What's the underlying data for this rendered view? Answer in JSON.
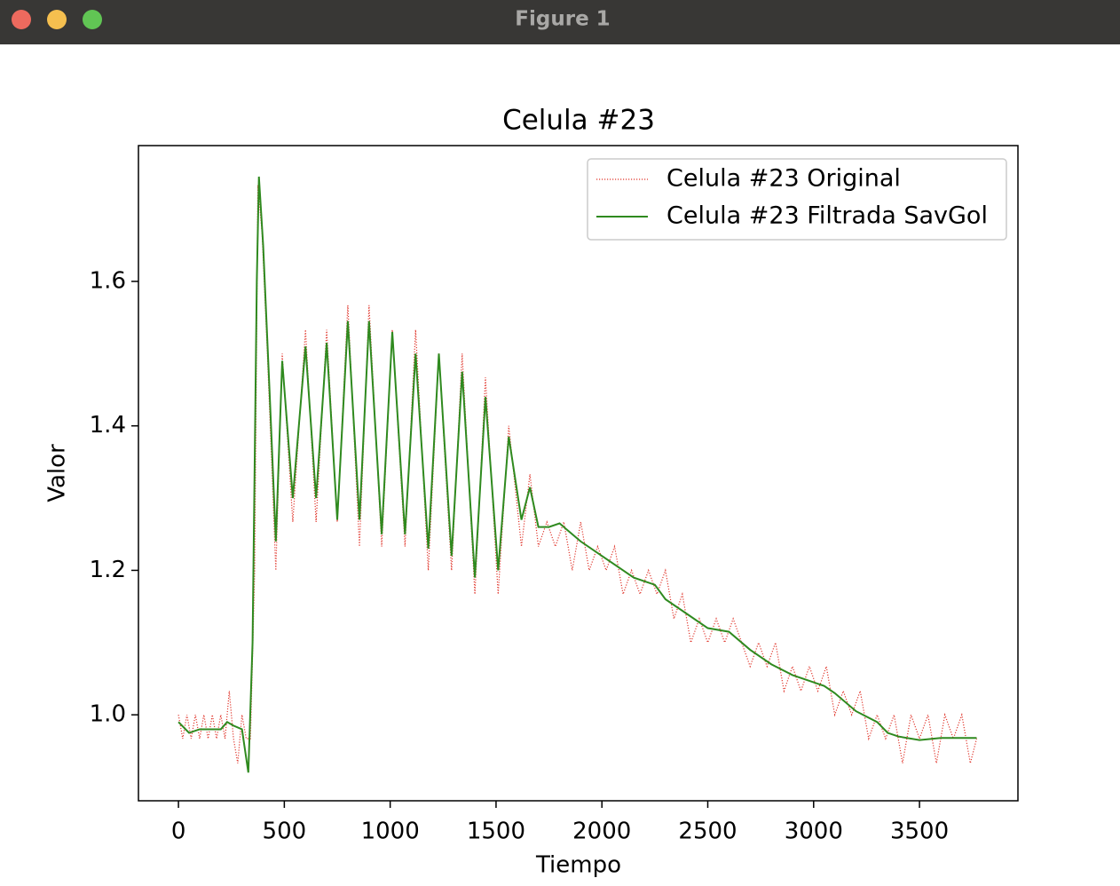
{
  "window": {
    "title": "Figure 1"
  },
  "chart_data": {
    "type": "line",
    "title": "Celula #23",
    "x_label": "Tiempo",
    "y_label": "Valor",
    "xlim": [
      -189,
      3965
    ],
    "ylim": [
      0.881,
      1.788
    ],
    "xticks": [
      0,
      500,
      1000,
      1500,
      2000,
      2500,
      3000,
      3500
    ],
    "yticks": [
      {
        "value": 1,
        "label": "1.0"
      },
      1.2,
      1.4,
      1.6
    ],
    "grid": false,
    "legend": "upper right",
    "series": [
      {
        "name": "Celula #23 Original",
        "color": "#e0352b",
        "linestyle": "dotted",
        "x": [
          0,
          20,
          40,
          60,
          80,
          100,
          120,
          140,
          160,
          180,
          200,
          220,
          240,
          260,
          280,
          300,
          320,
          340,
          360,
          375,
          385,
          395,
          420,
          460,
          490,
          540,
          600,
          650,
          700,
          750,
          800,
          855,
          900,
          960,
          1010,
          1070,
          1120,
          1180,
          1230,
          1290,
          1340,
          1400,
          1450,
          1510,
          1560,
          1620,
          1660,
          1700,
          1740,
          1780,
          1820,
          1860,
          1900,
          1940,
          1980,
          2020,
          2060,
          2100,
          2140,
          2180,
          2220,
          2260,
          2300,
          2340,
          2380,
          2420,
          2460,
          2500,
          2540,
          2580,
          2620,
          2660,
          2700,
          2740,
          2780,
          2820,
          2860,
          2900,
          2940,
          2980,
          3020,
          3060,
          3100,
          3140,
          3180,
          3220,
          3260,
          3300,
          3340,
          3380,
          3420,
          3460,
          3500,
          3540,
          3580,
          3620,
          3660,
          3700,
          3740,
          3770
        ],
        "values": [
          1.0,
          0.967,
          1.0,
          0.967,
          1.0,
          0.967,
          1.0,
          0.967,
          1.0,
          0.967,
          1.0,
          0.967,
          1.033,
          0.967,
          0.933,
          1.0,
          0.967,
          0.967,
          1.2,
          1.733,
          1.7,
          1.667,
          1.5,
          1.2,
          1.5,
          1.267,
          1.533,
          1.267,
          1.533,
          1.267,
          1.567,
          1.233,
          1.567,
          1.233,
          1.533,
          1.233,
          1.533,
          1.2,
          1.5,
          1.2,
          1.5,
          1.167,
          1.467,
          1.167,
          1.4,
          1.233,
          1.333,
          1.233,
          1.267,
          1.233,
          1.267,
          1.2,
          1.267,
          1.2,
          1.233,
          1.2,
          1.233,
          1.167,
          1.2,
          1.167,
          1.2,
          1.167,
          1.2,
          1.133,
          1.167,
          1.1,
          1.133,
          1.1,
          1.133,
          1.1,
          1.133,
          1.1,
          1.067,
          1.1,
          1.067,
          1.1,
          1.033,
          1.067,
          1.033,
          1.067,
          1.033,
          1.067,
          1.0,
          1.033,
          1.0,
          1.033,
          0.967,
          1.0,
          0.967,
          1.0,
          0.933,
          1.0,
          0.967,
          1.0,
          0.933,
          1.0,
          0.967,
          1.0,
          0.933,
          0.967
        ]
      },
      {
        "name": "Celula #23 Filtrada SavGol",
        "color": "#2f8a1f",
        "linestyle": "solid",
        "x": [
          0,
          50,
          100,
          200,
          230,
          260,
          300,
          330,
          350,
          370,
          380,
          400,
          430,
          460,
          490,
          540,
          600,
          650,
          700,
          750,
          800,
          855,
          900,
          960,
          1010,
          1070,
          1120,
          1180,
          1230,
          1290,
          1340,
          1400,
          1450,
          1510,
          1560,
          1620,
          1660,
          1700,
          1750,
          1800,
          1900,
          2000,
          2100,
          2150,
          2200,
          2250,
          2300,
          2400,
          2500,
          2600,
          2700,
          2800,
          2900,
          3000,
          3050,
          3100,
          3200,
          3300,
          3350,
          3400,
          3500,
          3600,
          3700,
          3770
        ],
        "values": [
          0.99,
          0.975,
          0.98,
          0.98,
          0.99,
          0.985,
          0.98,
          0.92,
          1.1,
          1.6,
          1.745,
          1.65,
          1.45,
          1.24,
          1.49,
          1.3,
          1.51,
          1.3,
          1.515,
          1.27,
          1.545,
          1.27,
          1.545,
          1.25,
          1.53,
          1.25,
          1.5,
          1.23,
          1.5,
          1.22,
          1.475,
          1.19,
          1.44,
          1.2,
          1.385,
          1.27,
          1.315,
          1.26,
          1.26,
          1.265,
          1.24,
          1.22,
          1.2,
          1.19,
          1.185,
          1.18,
          1.16,
          1.14,
          1.12,
          1.115,
          1.09,
          1.07,
          1.055,
          1.045,
          1.04,
          1.03,
          1.005,
          0.99,
          0.975,
          0.97,
          0.965,
          0.968,
          0.968,
          0.968
        ]
      }
    ]
  }
}
